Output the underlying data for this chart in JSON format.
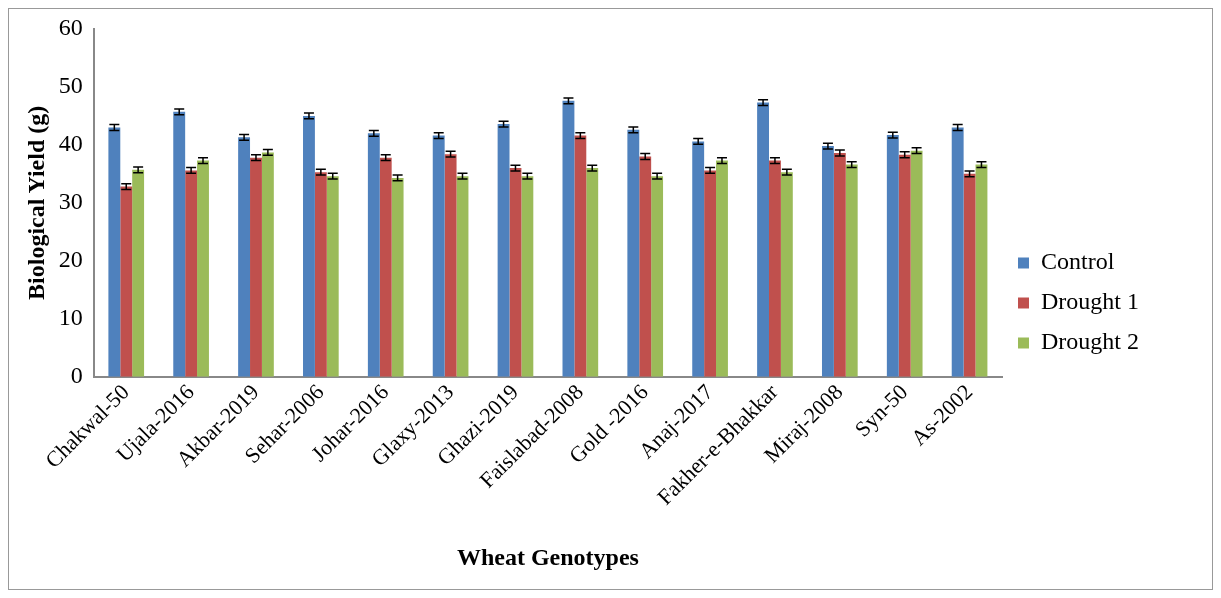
{
  "chart_data": {
    "type": "bar",
    "xlabel": "Wheat Genotypes",
    "ylabel": "Biological Yield (g)",
    "categories": [
      "Chakwal-50",
      "Ujala-2016",
      "Akbar-2019",
      "Sehar-2006",
      "Johar-2016",
      "Glaxy-2013",
      "Ghazi-2019",
      "Faislabad-2008",
      "Gold -2016",
      "Anaj-2017",
      "Fakher-e-Bhakkar",
      "Miraj-2008",
      "Syn-50",
      "As-2002"
    ],
    "series": [
      {
        "name": "Control",
        "color": "#4f81bd",
        "values": [
          43,
          45.7,
          41.3,
          45,
          42,
          41.6,
          43.6,
          47.6,
          42.6,
          40.6,
          47.3,
          39.8,
          41.7,
          43
        ],
        "errors": [
          0.5,
          0.5,
          0.5,
          0.5,
          0.5,
          0.5,
          0.5,
          0.5,
          0.5,
          0.5,
          0.5,
          0.5,
          0.5,
          0.5
        ]
      },
      {
        "name": "Drought 1",
        "color": "#c0504d",
        "values": [
          32.8,
          35.6,
          37.8,
          35.3,
          37.8,
          38.4,
          36,
          41.6,
          38,
          35.6,
          37.3,
          38.6,
          38.3,
          35
        ],
        "errors": [
          0.5,
          0.5,
          0.5,
          0.5,
          0.5,
          0.5,
          0.5,
          0.5,
          0.5,
          0.5,
          0.5,
          0.5,
          0.5,
          0.5
        ]
      },
      {
        "name": "Drought 2",
        "color": "#9bbb59",
        "values": [
          35.7,
          37.3,
          38.7,
          34.6,
          34.3,
          34.6,
          34.6,
          36,
          34.6,
          37.3,
          35.3,
          36.6,
          39,
          36.6
        ],
        "errors": [
          0.5,
          0.5,
          0.5,
          0.5,
          0.5,
          0.5,
          0.5,
          0.5,
          0.5,
          0.5,
          0.5,
          0.5,
          0.5,
          0.5
        ]
      }
    ],
    "ylim": [
      0,
      60
    ],
    "yticks": [
      0,
      10,
      20,
      30,
      40,
      50,
      60
    ],
    "grid": false,
    "legend": "right"
  }
}
